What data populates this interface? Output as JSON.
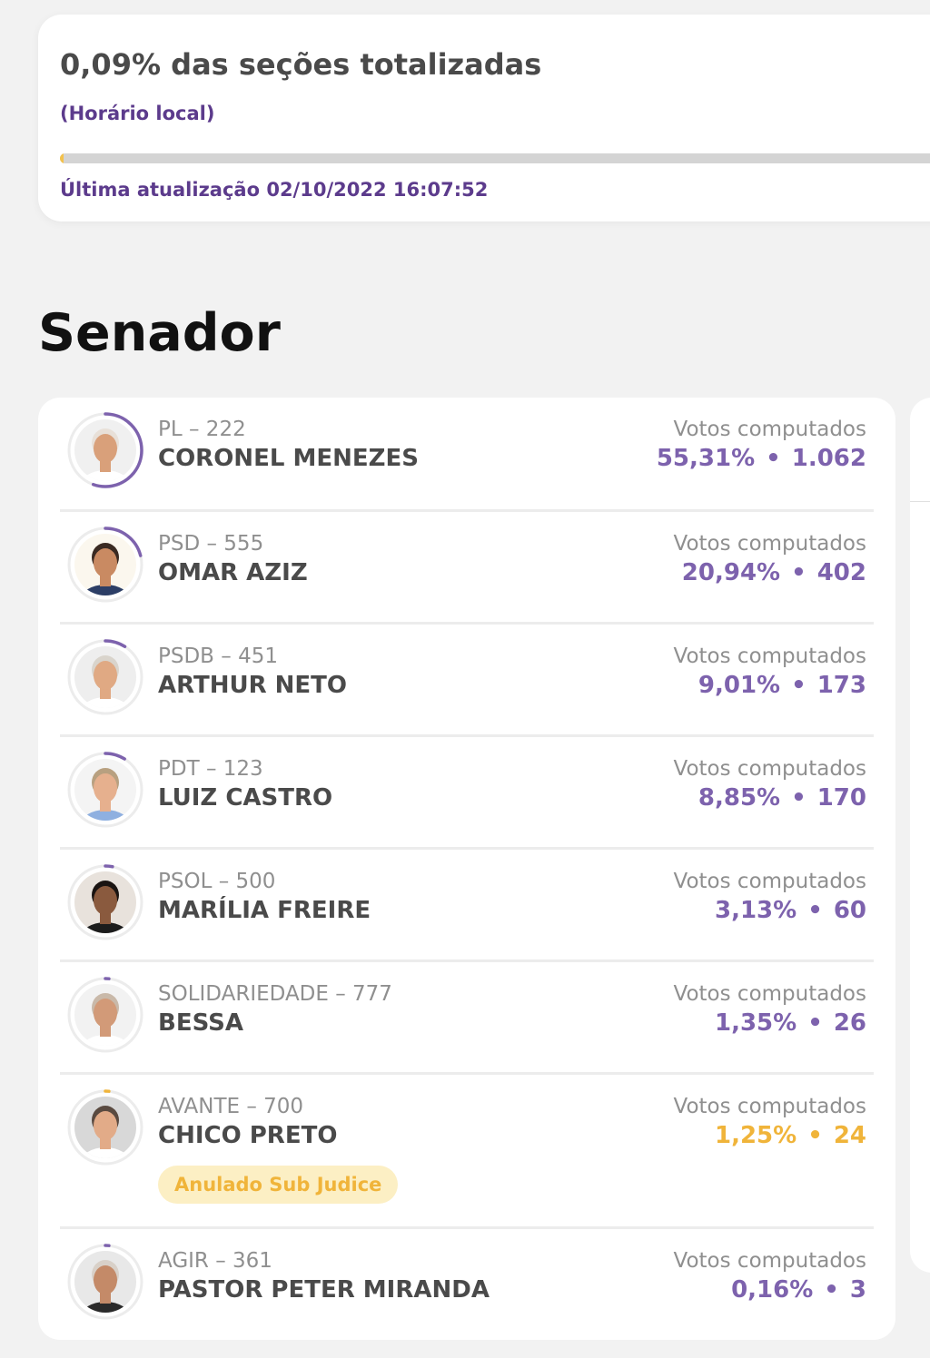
{
  "status": {
    "title": "0,09% das seções totalizadas",
    "subtitle": "(Horário local)",
    "progress_percent": 0.09,
    "progress_color": "#f3c24e",
    "updated": "Última atualização 02/10/2022 16:07:52"
  },
  "section": {
    "title": "Senador"
  },
  "accent": "#7d62ad",
  "warning": "#f0b43a",
  "candidates": [
    {
      "party": "PL – 222",
      "name": "CORONEL MENEZES",
      "votes_label": "Votos computados",
      "percent": "55,31%",
      "dot": "•",
      "votes": "1.062",
      "share": 55.31,
      "status": "normal",
      "skin": "#d9a07a",
      "hair": "#e8e0d8",
      "shirt": "#ffffff",
      "bg": "#f0f0f0"
    },
    {
      "party": "PSD – 555",
      "name": "OMAR AZIZ",
      "votes_label": "Votos computados",
      "percent": "20,94%",
      "dot": "•",
      "votes": "402",
      "share": 20.94,
      "status": "normal",
      "skin": "#c98a62",
      "hair": "#3a2a22",
      "shirt": "#2c3e66",
      "bg": "#fbf7ee"
    },
    {
      "party": "PSDB – 451",
      "name": "ARTHUR NETO",
      "votes_label": "Votos computados",
      "percent": "9,01%",
      "dot": "•",
      "votes": "173",
      "share": 9.01,
      "status": "normal",
      "skin": "#e0a983",
      "hair": "#d9d4cc",
      "shirt": "#ffffff",
      "bg": "#eeeeee"
    },
    {
      "party": "PDT – 123",
      "name": "LUIZ CASTRO",
      "votes_label": "Votos computados",
      "percent": "8,85%",
      "dot": "•",
      "votes": "170",
      "share": 8.85,
      "status": "normal",
      "skin": "#e6b08e",
      "hair": "#b8a080",
      "shirt": "#8fb0e0",
      "bg": "#f4f4f4"
    },
    {
      "party": "PSOL – 500",
      "name": "MARÍLIA FREIRE",
      "votes_label": "Votos computados",
      "percent": "3,13%",
      "dot": "•",
      "votes": "60",
      "share": 3.13,
      "status": "normal",
      "skin": "#8a5a3e",
      "hair": "#1a1412",
      "shirt": "#1c1c1c",
      "bg": "#e8e2dc"
    },
    {
      "party": "SOLIDARIEDADE – 777",
      "name": "BESSA",
      "votes_label": "Votos computados",
      "percent": "1,35%",
      "dot": "•",
      "votes": "26",
      "share": 1.35,
      "status": "normal",
      "skin": "#d29a78",
      "hair": "#c9b9a9",
      "shirt": "#ffffff",
      "bg": "#f2f2f2"
    },
    {
      "party": "AVANTE – 700",
      "name": "CHICO PRETO",
      "votes_label": "Votos computados",
      "percent": "1,25%",
      "dot": "•",
      "votes": "24",
      "share": 1.25,
      "status": "warning",
      "badge": "Anulado Sub Judice",
      "skin": "#e2ab88",
      "hair": "#5a4a40",
      "shirt": "#ffffff",
      "bg": "#d8d8d8"
    },
    {
      "party": "AGIR – 361",
      "name": "PASTOR PETER MIRANDA",
      "votes_label": "Votos computados",
      "percent": "0,16%",
      "dot": "•",
      "votes": "3",
      "share": 0.16,
      "status": "normal",
      "skin": "#c48a68",
      "hair": "#d8d0c8",
      "shirt": "#2a2a2a",
      "bg": "#e8e8e8"
    }
  ]
}
